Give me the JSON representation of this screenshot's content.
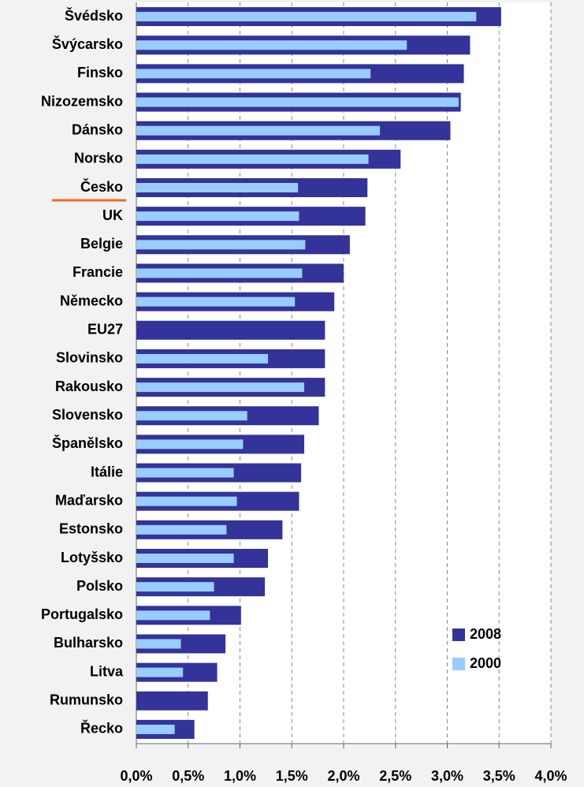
{
  "chart_data": {
    "type": "bar",
    "orientation": "horizontal",
    "categories": [
      "Švédsko",
      "Švýcarsko",
      "Finsko",
      "Nizozemsko",
      "Dánsko",
      "Norsko",
      "Česko",
      "UK",
      "Belgie",
      "Francie",
      "Německo",
      "EU27",
      "Slovinsko",
      "Rakousko",
      "Slovensko",
      "Španělsko",
      "Itálie",
      "Maďarsko",
      "Estonsko",
      "Lotyšsko",
      "Polsko",
      "Portugalsko",
      "Bulharsko",
      "Litva",
      "Rumunsko",
      "Řecko"
    ],
    "series": [
      {
        "name": "2008",
        "color": "#333399",
        "values": [
          3.52,
          3.22,
          3.16,
          3.13,
          3.03,
          2.55,
          2.23,
          2.21,
          2.06,
          2.0,
          1.91,
          1.82,
          1.82,
          1.82,
          1.76,
          1.62,
          1.59,
          1.57,
          1.41,
          1.27,
          1.24,
          1.01,
          0.86,
          0.78,
          0.69,
          0.56
        ]
      },
      {
        "name": "2000",
        "color": "#99ccff",
        "values": [
          3.28,
          2.61,
          2.26,
          3.11,
          2.35,
          2.24,
          1.56,
          1.57,
          1.63,
          1.6,
          1.53,
          null,
          1.27,
          1.62,
          1.07,
          1.03,
          0.94,
          0.97,
          0.87,
          0.94,
          0.75,
          0.71,
          0.43,
          0.45,
          null,
          0.37
        ]
      }
    ],
    "xlim": [
      0,
      4
    ],
    "xticks": [
      {
        "value": 0,
        "label": "0,0%"
      },
      {
        "value": 0.5,
        "label": "0,5%"
      },
      {
        "value": 1,
        "label": "1,0%"
      },
      {
        "value": 1.5,
        "label": "1,5%"
      },
      {
        "value": 2,
        "label": "2,0%"
      },
      {
        "value": 2.5,
        "label": "2,5%"
      },
      {
        "value": 3,
        "label": "3,0%"
      },
      {
        "value": 3.5,
        "label": "3,5%"
      },
      {
        "value": 4,
        "label": "4,0%"
      }
    ],
    "grid": true,
    "legend": "lower right"
  }
}
